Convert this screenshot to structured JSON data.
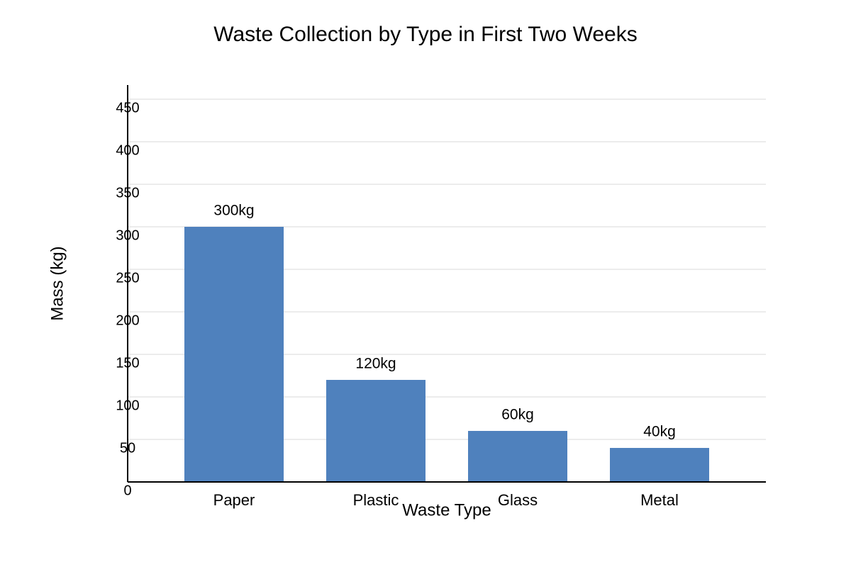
{
  "chart_data": {
    "type": "bar",
    "title": "Waste Collection by Type in First Two Weeks",
    "x_label": "Waste Type",
    "y_label": "Mass (kg)",
    "categories": [
      "Paper",
      "Plastic",
      "Glass",
      "Metal"
    ],
    "values": [
      300,
      120,
      60,
      40
    ],
    "value_labels": [
      "300kg",
      "120kg",
      "60kg",
      "40kg"
    ],
    "color": "#4f81bd",
    "ylim": [
      0,
      450
    ],
    "yticks": [
      0,
      50,
      100,
      150,
      200,
      250,
      300,
      350,
      400,
      450
    ],
    "grid": true
  }
}
